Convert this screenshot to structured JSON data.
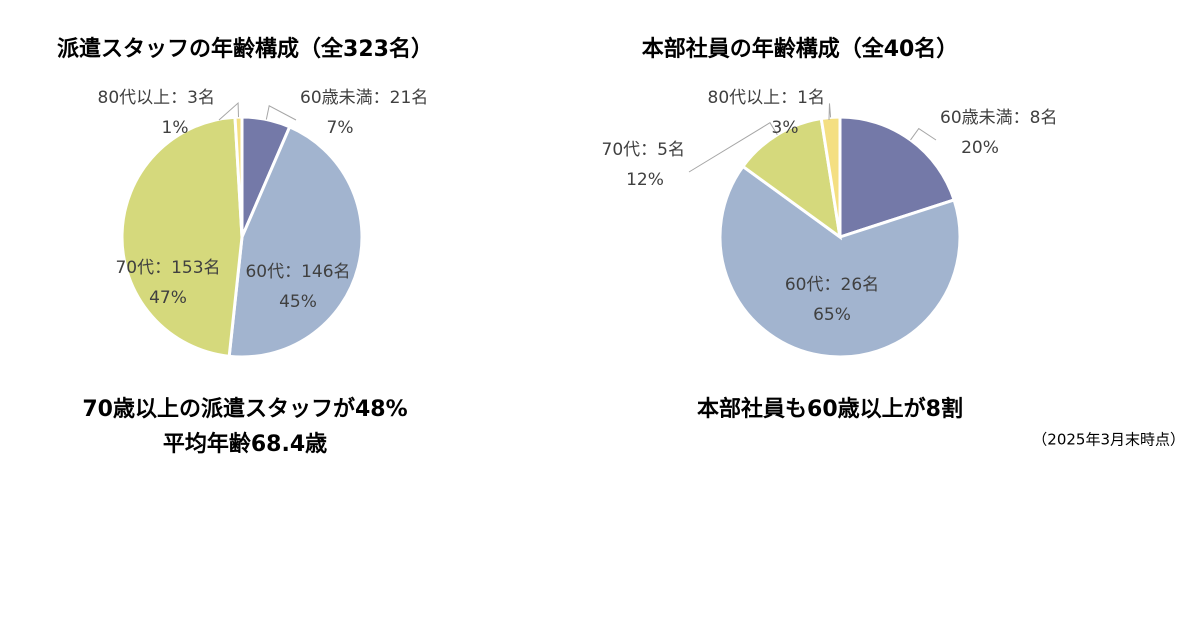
{
  "chart_data": [
    {
      "type": "pie",
      "title": "派遣スタッフの年齢構成（全323名）",
      "categories": [
        "60歳未満",
        "60代",
        "70代",
        "80代以上"
      ],
      "values": [
        21,
        146,
        153,
        3
      ],
      "value_labels": [
        "21名",
        "146名",
        "153名",
        "3名"
      ],
      "percent_labels": [
        "7%",
        "45%",
        "47%",
        "1%"
      ],
      "label_separator": "：",
      "colors": [
        "#7479a8",
        "#a2b4cf",
        "#d5d97c",
        "#f4df82"
      ],
      "annotations": [
        "70歳以上の派遣スタッフが48%",
        "平均年齢68.4歳"
      ]
    },
    {
      "type": "pie",
      "title": "本部社員の年齢構成（全40名）",
      "categories": [
        "60歳未満",
        "60代",
        "70代",
        "80代以上"
      ],
      "values": [
        8,
        26,
        5,
        1
      ],
      "value_labels": [
        "8名",
        "26名",
        "5名",
        "1名"
      ],
      "percent_labels": [
        "20%",
        "65%",
        "12%",
        "3%"
      ],
      "label_separator": "：",
      "colors": [
        "#7479a8",
        "#a2b4cf",
        "#d5d97c",
        "#f4df82"
      ],
      "annotations": [
        "本部社員も60歳以上が8割",
        "（2025年3月末時点）"
      ]
    }
  ]
}
